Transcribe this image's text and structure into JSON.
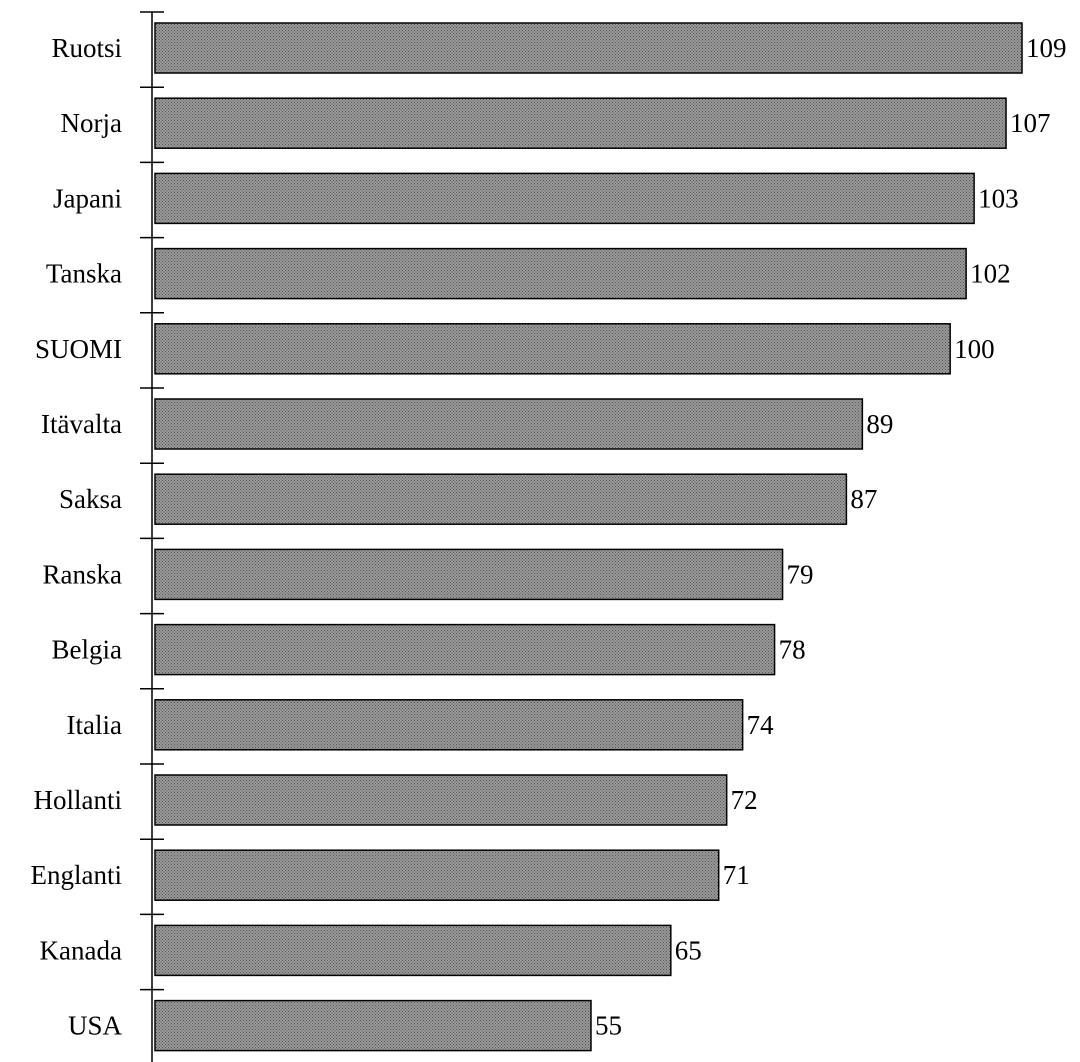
{
  "chart_data": {
    "type": "bar",
    "orientation": "horizontal",
    "categories": [
      "Ruotsi",
      "Norja",
      "Japani",
      "Tanska",
      "SUOMI",
      "Itävalta",
      "Saksa",
      "Ranska",
      "Belgia",
      "Italia",
      "Hollanti",
      "Englanti",
      "Kanada",
      "USA"
    ],
    "values": [
      109,
      107,
      103,
      102,
      100,
      89,
      87,
      79,
      78,
      74,
      72,
      71,
      65,
      55
    ],
    "data_labels": [
      "109",
      "107",
      "103",
      "102",
      "100",
      "89",
      "87",
      "79",
      "78",
      "74",
      "72",
      "71",
      "65",
      "55"
    ],
    "title": "",
    "xlabel": "",
    "ylabel": "",
    "xlim": [
      0,
      109
    ],
    "grid": false,
    "legend": "none",
    "bar_fill": "#9a9a9a",
    "bar_pattern_dot": "#555555",
    "bar_stroke": "#000000"
  }
}
